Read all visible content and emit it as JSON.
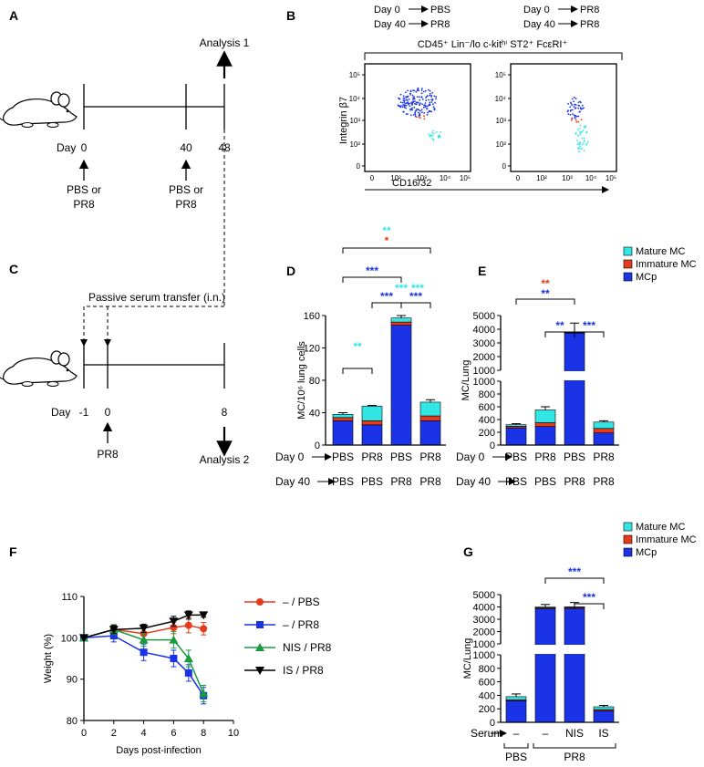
{
  "panels": {
    "A": "A",
    "B": "B",
    "C": "C",
    "D": "D",
    "E": "E",
    "F": "F",
    "G": "G"
  },
  "A": {
    "day_label": "Day",
    "ticks": [
      "0",
      "40",
      "48"
    ],
    "analysis": "Analysis 1",
    "treat1": [
      "PBS or",
      "PR8"
    ],
    "treat2": [
      "PBS or",
      "PR8"
    ]
  },
  "B": {
    "groups": [
      {
        "day0": "Day 0",
        "val0": "PBS",
        "day40": "Day 40",
        "val40": "PR8"
      },
      {
        "day0": "Day 0",
        "val0": "PR8",
        "day40": "Day 40",
        "val40": "PR8"
      }
    ],
    "gate_label": "CD45⁺ Lin⁻/lo c-kitʰⁱ ST2⁺ FcεRI⁺",
    "ylabel": "Integrin β7",
    "xlabel": "CD16/32",
    "yticks": [
      "10⁵",
      "10⁴",
      "10³",
      "10²",
      "0"
    ],
    "xticks": [
      "0",
      "10²",
      "10³",
      "10⁴",
      "10⁵"
    ]
  },
  "C": {
    "transfer": "Passive serum transfer (i.n.)",
    "day_label": "Day",
    "ticks": [
      "-1",
      "0",
      "8"
    ],
    "treat": "PR8",
    "analysis": "Analysis 2"
  },
  "legend": {
    "mature": "Mature MC",
    "immature": "Immature MC",
    "mcp": "MCp"
  },
  "colors": {
    "mature": "#33e6e6",
    "immature": "#e63a1c",
    "mcp": "#1a33e6",
    "nis": "#1a9a40"
  },
  "chart_data": [
    {
      "id": "D",
      "type": "bar",
      "stacked": true,
      "ylabel": "MC/10⁶ lung cells",
      "ylim": [
        0,
        160
      ],
      "yticks": [
        "0",
        "40",
        "80",
        "120",
        "160"
      ],
      "categories_day0": [
        "PBS",
        "PR8",
        "PBS",
        "PR8"
      ],
      "categories_day40": [
        "PBS",
        "PBS",
        "PR8",
        "PR8"
      ],
      "row_label_day0": "Day 0",
      "row_label_day40": "Day 40",
      "series": [
        {
          "name": "MCp",
          "values": [
            30,
            25,
            148,
            30
          ]
        },
        {
          "name": "Immature MC",
          "values": [
            4,
            5,
            4,
            6
          ]
        },
        {
          "name": "Mature MC",
          "values": [
            4,
            18,
            5,
            17
          ]
        }
      ],
      "errors": [
        2,
        1,
        3,
        3
      ],
      "significance": [
        "***",
        "***",
        "***",
        "**",
        "***",
        "***",
        "**",
        "*"
      ]
    },
    {
      "id": "E",
      "type": "bar",
      "stacked": true,
      "broken_axis": true,
      "ylabel": "MC/Lung",
      "yticks_low": [
        "0",
        "200",
        "400",
        "600",
        "800",
        "1000"
      ],
      "yticks_high": [
        "1000",
        "2000",
        "3000",
        "4000",
        "5000"
      ],
      "categories_day0": [
        "PBS",
        "PR8",
        "PBS",
        "PR8"
      ],
      "categories_day40": [
        "PBS",
        "PBS",
        "PR8",
        "PR8"
      ],
      "row_label_day0": "Day 0",
      "row_label_day40": "Day 40",
      "series": [
        {
          "name": "MCp",
          "values": [
            270,
            290,
            3720,
            190
          ]
        },
        {
          "name": "Immature MC",
          "values": [
            25,
            60,
            40,
            70
          ]
        },
        {
          "name": "Mature MC",
          "values": [
            25,
            200,
            40,
            100
          ]
        }
      ],
      "errors": [
        15,
        50,
        650,
        20
      ],
      "significance": [
        "**",
        "**",
        "**",
        "***"
      ]
    },
    {
      "id": "F",
      "type": "line",
      "xlabel": "Days post-infection",
      "ylabel": "Weight (%)",
      "xlim": [
        0,
        10
      ],
      "ylim": [
        80,
        110
      ],
      "xticks": [
        "0",
        "2",
        "4",
        "6",
        "8",
        "10"
      ],
      "yticks": [
        "80",
        "90",
        "100",
        "110"
      ],
      "x": [
        0,
        2,
        4,
        6,
        7,
        8
      ],
      "series": [
        {
          "name": "– / PBS",
          "values": [
            100,
            102,
            101,
            102.5,
            103,
            102.2
          ],
          "err": [
            0,
            1,
            1.5,
            1.5,
            1.8,
            1.5
          ]
        },
        {
          "name": "– / PR8",
          "values": [
            100,
            100.5,
            96.5,
            95,
            91.5,
            86
          ],
          "err": [
            0,
            1.5,
            2,
            2,
            2,
            2
          ]
        },
        {
          "name": "NIS / PR8",
          "values": [
            100,
            102,
            99.5,
            99.5,
            95,
            86.5
          ],
          "err": [
            0,
            1.2,
            1.5,
            2,
            2,
            2
          ]
        },
        {
          "name": "IS / PR8",
          "values": [
            100,
            102,
            102.3,
            104,
            105.5,
            105.5
          ],
          "err": [
            0,
            1,
            1,
            1.2,
            1,
            0.5
          ]
        }
      ]
    },
    {
      "id": "G",
      "type": "bar",
      "stacked": true,
      "broken_axis": true,
      "ylabel": "MC/Lung",
      "yticks_low": [
        "0",
        "200",
        "400",
        "600",
        "800",
        "1000"
      ],
      "yticks_high": [
        "1000",
        "2000",
        "3000",
        "4000",
        "5000"
      ],
      "serum_label": "Serum",
      "categories": [
        "–",
        "–",
        "NIS",
        "IS"
      ],
      "group_labels": [
        "PBS",
        "PR8"
      ],
      "series": [
        {
          "name": "MCp",
          "values": [
            320,
            3850,
            3880,
            170
          ]
        },
        {
          "name": "Immature MC",
          "values": [
            15,
            80,
            80,
            20
          ]
        },
        {
          "name": "Mature MC",
          "values": [
            45,
            70,
            50,
            40
          ]
        }
      ],
      "errors": [
        40,
        200,
        350,
        20
      ],
      "significance": [
        "***",
        "***"
      ]
    }
  ]
}
